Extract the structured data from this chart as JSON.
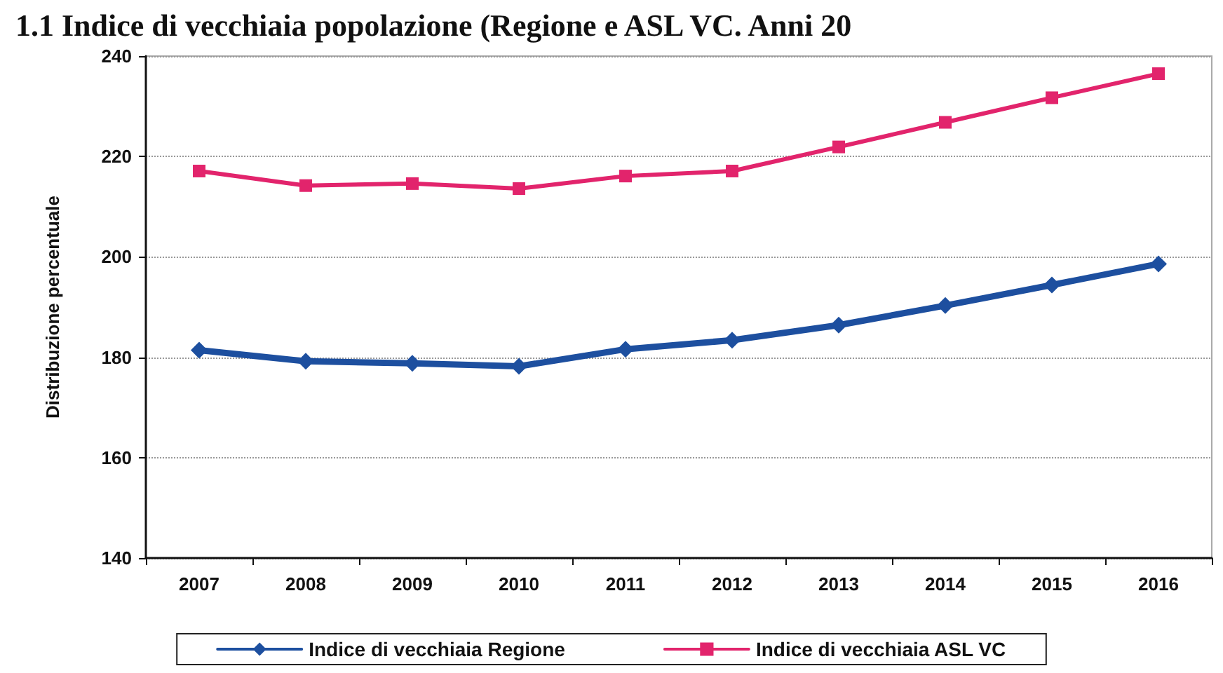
{
  "chart_data": {
    "type": "line",
    "title": "1.1 Indice di vecchiaia popolazione (Regione e ASL VC. Anni 20",
    "ylabel": "Distribuzione percentuale",
    "categories": [
      "2007",
      "2008",
      "2009",
      "2010",
      "2011",
      "2012",
      "2013",
      "2014",
      "2015",
      "2016"
    ],
    "series": [
      {
        "name": "Indice di vecchiaia Regione",
        "color": "#1d4f9f",
        "marker": "diamond",
        "values": [
          181.4,
          179.2,
          178.8,
          178.2,
          181.6,
          183.4,
          186.4,
          190.3,
          194.4,
          198.6
        ]
      },
      {
        "name": "Indice di vecchiaia ASL VC",
        "color": "#e2246c",
        "marker": "square",
        "values": [
          217.1,
          214.2,
          214.6,
          213.6,
          216.1,
          217.1,
          221.9,
          226.8,
          231.7,
          236.5
        ]
      }
    ],
    "ylim": [
      140,
      240
    ],
    "yticks": [
      140,
      160,
      180,
      200,
      220,
      240
    ],
    "grid": "y",
    "legend": "bottom"
  }
}
